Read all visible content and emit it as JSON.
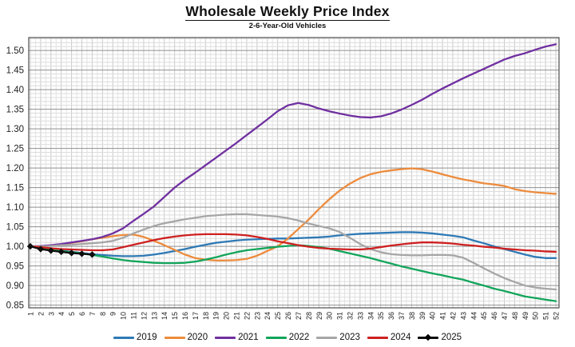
{
  "header": {
    "title": "Wholesale Weekly Price Index",
    "subtitle": "2-6-Year-Old Vehicles"
  },
  "chart_data": {
    "type": "line",
    "title": "Wholesale Weekly Price Index",
    "subtitle": "2-6-Year-Old Vehicles",
    "xlabel": "",
    "ylabel": "",
    "x": [
      1,
      2,
      3,
      4,
      5,
      6,
      7,
      8,
      9,
      10,
      11,
      12,
      13,
      14,
      15,
      16,
      17,
      18,
      19,
      20,
      21,
      22,
      23,
      24,
      25,
      26,
      27,
      28,
      29,
      30,
      31,
      32,
      33,
      34,
      35,
      36,
      37,
      38,
      39,
      40,
      41,
      42,
      43,
      44,
      45,
      46,
      47,
      48,
      49,
      50,
      51,
      52
    ],
    "y_ticks": [
      0.85,
      0.9,
      0.95,
      1.0,
      1.05,
      1.1,
      1.15,
      1.2,
      1.25,
      1.3,
      1.35,
      1.4,
      1.45,
      1.5
    ],
    "ylim": [
      0.843,
      1.533
    ],
    "grid": {
      "on": true,
      "minor_y_step": 0.01,
      "major_y_step": 0.05,
      "minor_x_step": 0.5
    },
    "legend_position": "bottom",
    "series": [
      {
        "name": "2019",
        "color": "#2E79B5",
        "marker": "none",
        "values": [
          1.0,
          0.996,
          0.992,
          0.989,
          0.986,
          0.983,
          0.98,
          0.978,
          0.976,
          0.975,
          0.975,
          0.976,
          0.979,
          0.983,
          0.988,
          0.993,
          0.999,
          1.004,
          1.009,
          1.012,
          1.015,
          1.017,
          1.018,
          1.019,
          1.02,
          1.02,
          1.021,
          1.022,
          1.023,
          1.025,
          1.028,
          1.03,
          1.032,
          1.033,
          1.034,
          1.035,
          1.036,
          1.036,
          1.035,
          1.033,
          1.03,
          1.027,
          1.023,
          1.015,
          1.008,
          1.0,
          0.993,
          0.986,
          0.979,
          0.973,
          0.97,
          0.97
        ]
      },
      {
        "name": "2020",
        "color": "#ED8B3C",
        "marker": "none",
        "values": [
          1.0,
          1.0,
          1.002,
          1.005,
          1.009,
          1.013,
          1.018,
          1.022,
          1.026,
          1.029,
          1.03,
          1.024,
          1.014,
          1.003,
          0.991,
          0.979,
          0.97,
          0.966,
          0.964,
          0.964,
          0.965,
          0.968,
          0.976,
          0.988,
          1.0,
          1.02,
          1.044,
          1.068,
          1.095,
          1.12,
          1.142,
          1.16,
          1.174,
          1.184,
          1.19,
          1.194,
          1.197,
          1.199,
          1.197,
          1.191,
          1.184,
          1.177,
          1.171,
          1.166,
          1.161,
          1.158,
          1.154,
          1.146,
          1.141,
          1.138,
          1.136,
          1.134
        ]
      },
      {
        "name": "2021",
        "color": "#7030A0",
        "marker": "none",
        "values": [
          1.0,
          1.001,
          1.003,
          1.006,
          1.01,
          1.014,
          1.018,
          1.024,
          1.033,
          1.046,
          1.065,
          1.083,
          1.102,
          1.126,
          1.15,
          1.17,
          1.188,
          1.207,
          1.226,
          1.245,
          1.264,
          1.284,
          1.304,
          1.324,
          1.345,
          1.36,
          1.366,
          1.361,
          1.352,
          1.345,
          1.339,
          1.334,
          1.33,
          1.329,
          1.332,
          1.339,
          1.349,
          1.361,
          1.374,
          1.389,
          1.403,
          1.416,
          1.429,
          1.441,
          1.453,
          1.465,
          1.477,
          1.486,
          1.493,
          1.502,
          1.51,
          1.516
        ]
      },
      {
        "name": "2022",
        "color": "#12A55B",
        "marker": "none",
        "values": [
          1.0,
          0.996,
          0.992,
          0.988,
          0.985,
          0.982,
          0.978,
          0.974,
          0.969,
          0.965,
          0.962,
          0.96,
          0.958,
          0.957,
          0.957,
          0.958,
          0.961,
          0.966,
          0.972,
          0.979,
          0.985,
          0.99,
          0.993,
          0.996,
          0.999,
          1.001,
          1.003,
          1.001,
          0.998,
          0.994,
          0.988,
          0.982,
          0.976,
          0.97,
          0.963,
          0.956,
          0.949,
          0.943,
          0.937,
          0.931,
          0.926,
          0.92,
          0.915,
          0.907,
          0.9,
          0.892,
          0.886,
          0.879,
          0.872,
          0.868,
          0.864,
          0.86
        ]
      },
      {
        "name": "2023",
        "color": "#A6A6A6",
        "marker": "none",
        "values": [
          1.0,
          1.0,
          1.001,
          1.003,
          1.004,
          1.006,
          1.008,
          1.01,
          1.014,
          1.022,
          1.033,
          1.043,
          1.052,
          1.059,
          1.064,
          1.069,
          1.073,
          1.077,
          1.079,
          1.081,
          1.082,
          1.082,
          1.08,
          1.078,
          1.076,
          1.072,
          1.066,
          1.058,
          1.052,
          1.046,
          1.037,
          1.022,
          1.006,
          0.993,
          0.985,
          0.98,
          0.978,
          0.977,
          0.977,
          0.978,
          0.978,
          0.977,
          0.971,
          0.958,
          0.944,
          0.931,
          0.919,
          0.909,
          0.9,
          0.895,
          0.892,
          0.89
        ]
      },
      {
        "name": "2024",
        "color": "#CE2020",
        "marker": "none",
        "values": [
          1.0,
          0.998,
          0.995,
          0.993,
          0.992,
          0.991,
          0.99,
          0.99,
          0.992,
          0.998,
          1.004,
          1.01,
          1.016,
          1.021,
          1.025,
          1.028,
          1.03,
          1.031,
          1.031,
          1.031,
          1.03,
          1.028,
          1.024,
          1.019,
          1.013,
          1.008,
          1.003,
          0.999,
          0.996,
          0.994,
          0.993,
          0.992,
          0.992,
          0.994,
          0.998,
          1.002,
          1.005,
          1.008,
          1.01,
          1.01,
          1.009,
          1.007,
          1.004,
          1.002,
          0.999,
          0.997,
          0.994,
          0.992,
          0.99,
          0.989,
          0.987,
          0.986
        ]
      },
      {
        "name": "2025",
        "color": "#0D0D0D",
        "marker": "diamond",
        "values": [
          1.0,
          0.993,
          0.989,
          0.986,
          0.983,
          0.981,
          0.979
        ]
      }
    ]
  }
}
